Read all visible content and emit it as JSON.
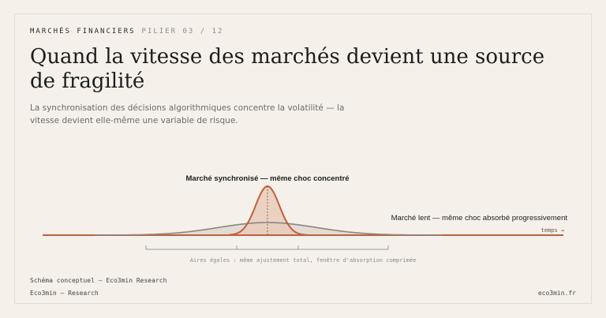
{
  "header": {
    "section": "MARCHÉS FINANCIERS",
    "pillar": "PILIER 03 / 12"
  },
  "title": "Quand la vitesse des marchés devient une source de fragilité",
  "subtitle": "La synchronisation des décisions algorithmiques concentre la volatilité — la vitesse devient elle-même une variable de risque.",
  "diagram": {
    "label_peak": "Marché synchronisé — même choc concentré",
    "label_flat": "Marché lent — même choc absorbé progressivement",
    "axis_label": "temps →",
    "bracket_caption": "Aires égales : même ajustement total, fenêtre d'absorption comprimée",
    "colors": {
      "peak": "#c0603f",
      "flat": "#8c8580",
      "fill_peak": "#e8cbbb",
      "fill_flat": "#e3dcd3"
    }
  },
  "footer": {
    "note": "Schéma conceptuel — Eco3min Research",
    "brand": "Eco3min — Research",
    "site": "eco3min.fr"
  }
}
